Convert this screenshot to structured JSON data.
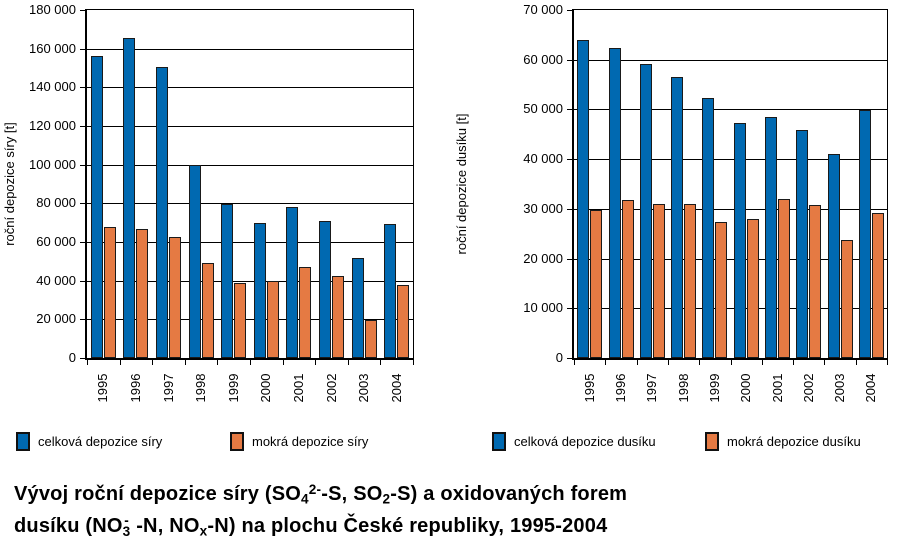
{
  "chart_data": [
    {
      "type": "bar",
      "title": "",
      "ylabel": "roční depozice síry [t]",
      "xlabel": "",
      "categories": [
        "1995",
        "1996",
        "1997",
        "1998",
        "1999",
        "2000",
        "2001",
        "2002",
        "2003",
        "2004"
      ],
      "series": [
        {
          "name": "celková depozice síry",
          "color": "#0069b1",
          "values": [
            156000,
            165500,
            150500,
            100000,
            79500,
            70000,
            78000,
            71000,
            51500,
            69500
          ]
        },
        {
          "name": "mokrá depozice síry",
          "color": "#e57a43",
          "values": [
            67500,
            66500,
            62500,
            49000,
            39000,
            40000,
            47000,
            42500,
            19500,
            37500
          ]
        }
      ],
      "ylim": [
        0,
        180000
      ],
      "yticks": [
        0,
        20000,
        40000,
        60000,
        80000,
        100000,
        120000,
        140000,
        160000,
        180000
      ],
      "grid": true,
      "legend_position": "below"
    },
    {
      "type": "bar",
      "title": "",
      "ylabel": "roční depozice dusíku [t]",
      "xlabel": "",
      "categories": [
        "1995",
        "1996",
        "1997",
        "1998",
        "1999",
        "2000",
        "2001",
        "2002",
        "2003",
        "2004"
      ],
      "series": [
        {
          "name": "celková depozice dusíku",
          "color": "#0069b1",
          "values": [
            64000,
            62300,
            59200,
            56600,
            52200,
            47200,
            48500,
            45800,
            41000,
            49800
          ]
        },
        {
          "name": "mokrá depozice dusíku",
          "color": "#e57a43",
          "values": [
            29800,
            31800,
            31000,
            31000,
            27400,
            28000,
            32000,
            30800,
            23800,
            29200
          ]
        }
      ],
      "ylim": [
        0,
        70000
      ],
      "yticks": [
        0,
        10000,
        20000,
        30000,
        40000,
        50000,
        60000,
        70000
      ],
      "grid": true,
      "legend_position": "below"
    }
  ],
  "legend": {
    "items": [
      {
        "label": "celková depozice síry",
        "color": "#0069b1"
      },
      {
        "label": "mokrá depozice síry",
        "color": "#e57a43"
      },
      {
        "label": "celková depozice dusíku",
        "color": "#0069b1"
      },
      {
        "label": "mokrá depozice dusíku",
        "color": "#e57a43"
      }
    ]
  },
  "caption": {
    "lines": [
      {
        "segments": [
          {
            "text": "Vývoj roční depozice síry (SO"
          },
          {
            "text": "4",
            "script": "sub"
          },
          {
            "text": "2-",
            "script": "sup"
          },
          {
            "text": "-S, SO"
          },
          {
            "text": "2",
            "script": "sub"
          },
          {
            "text": "-S) a oxidovaných forem"
          }
        ]
      },
      {
        "segments": [
          {
            "text": "dusíku (NO"
          },
          {
            "script": "stack",
            "sup": "-",
            "sub": "3"
          },
          {
            "text": " -N, NO"
          },
          {
            "text": "x",
            "script": "sub"
          },
          {
            "text": "-N) na plochu České republiky, 1995-2004"
          }
        ]
      }
    ]
  }
}
